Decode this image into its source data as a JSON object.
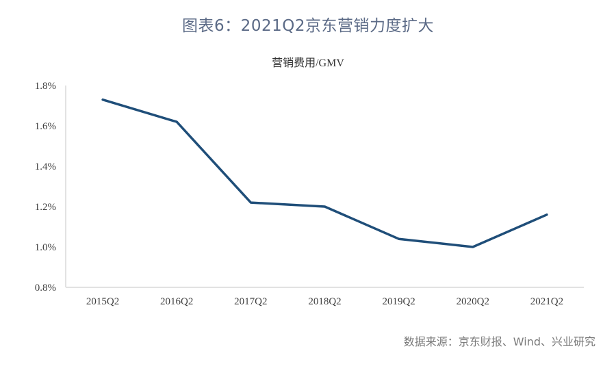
{
  "figure": {
    "title": "图表6：2021Q2京东营销力度扩大",
    "source": "数据来源：京东财报、Wind、兴业研究"
  },
  "colors": {
    "line": "#1f4e79",
    "title": "#5b6a86",
    "axis": "#d9d9d9"
  },
  "chart_data": {
    "type": "line",
    "title": "营销费用/GMV",
    "xlabel": "",
    "ylabel": "",
    "categories": [
      "2015Q2",
      "2016Q2",
      "2017Q2",
      "2018Q2",
      "2019Q2",
      "2020Q2",
      "2021Q2"
    ],
    "series": [
      {
        "name": "营销费用/GMV",
        "values": [
          1.73,
          1.62,
          1.22,
          1.2,
          1.04,
          1.0,
          1.16
        ]
      }
    ],
    "ylim": [
      0.8,
      1.8
    ],
    "yticks": [
      "0.8%",
      "1.0%",
      "1.2%",
      "1.4%",
      "1.6%",
      "1.8%"
    ],
    "y_unit": "%",
    "grid": false,
    "legend": "none"
  }
}
